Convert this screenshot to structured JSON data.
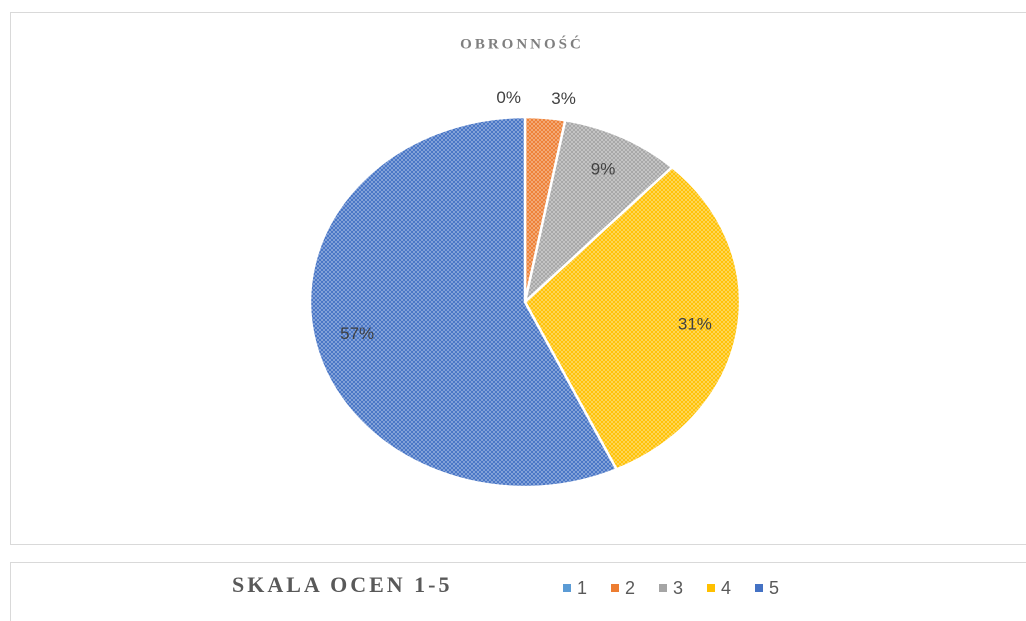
{
  "chart_data": {
    "type": "pie",
    "title": "OBRONNOŚĆ",
    "legend_title": "SKALA OCEN 1-5",
    "categories": [
      "1",
      "2",
      "3",
      "4",
      "5"
    ],
    "values": [
      0,
      3,
      9,
      31,
      57
    ],
    "value_labels": [
      "0%",
      "3%",
      "9%",
      "31%",
      "57%"
    ],
    "colors": [
      "#5b9bd5",
      "#ed7d31",
      "#a5a5a5",
      "#ffc000",
      "#4472c4"
    ],
    "legend": "bottom"
  }
}
